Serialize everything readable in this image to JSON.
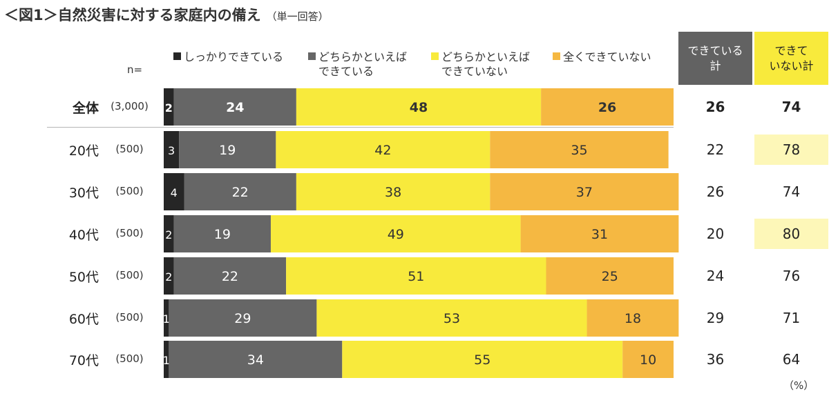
{
  "title": "＜図1＞自然災害に対する家庭内の備え",
  "subtitle": "（単一回答）",
  "n_label": "n=",
  "unit": "（%）",
  "totals_headers": {
    "done": "できている\n計",
    "not_done": "できて\nいない計"
  },
  "colors": {
    "fully_prepared": "#262626",
    "somewhat_prepared": "#666666",
    "somewhat_unprepared": "#f8ea3c",
    "not_prepared": "#f5b842",
    "done_header_bg": "#626262",
    "not_done_header_bg": "#f8ea3c",
    "highlight_bg": "#fdf7b8"
  },
  "chart_data": {
    "type": "bar",
    "orientation": "horizontal",
    "stacked": true,
    "xlim": [
      0,
      100
    ],
    "categories": [
      "全体",
      "20代",
      "30代",
      "40代",
      "50代",
      "60代",
      "70代"
    ],
    "sample_sizes": [
      "(3,000)",
      "(500)",
      "(500)",
      "(500)",
      "(500)",
      "(500)",
      "(500)"
    ],
    "series": [
      {
        "name": "しっかりできている",
        "values": [
          2,
          3,
          4,
          2,
          2,
          1,
          1
        ]
      },
      {
        "name": "どちらかといえば\nできている",
        "values": [
          24,
          19,
          22,
          19,
          22,
          29,
          34
        ]
      },
      {
        "name": "どちらかといえば\nできていない",
        "values": [
          48,
          42,
          38,
          49,
          51,
          53,
          55
        ]
      },
      {
        "name": "全くできていない",
        "values": [
          26,
          35,
          37,
          31,
          25,
          18,
          10
        ]
      }
    ],
    "totals": {
      "done": [
        26,
        22,
        26,
        20,
        24,
        29,
        36
      ],
      "not_done": [
        74,
        78,
        74,
        80,
        76,
        71,
        64
      ]
    },
    "highlight_not_done": [
      false,
      true,
      false,
      true,
      false,
      false,
      false
    ]
  }
}
